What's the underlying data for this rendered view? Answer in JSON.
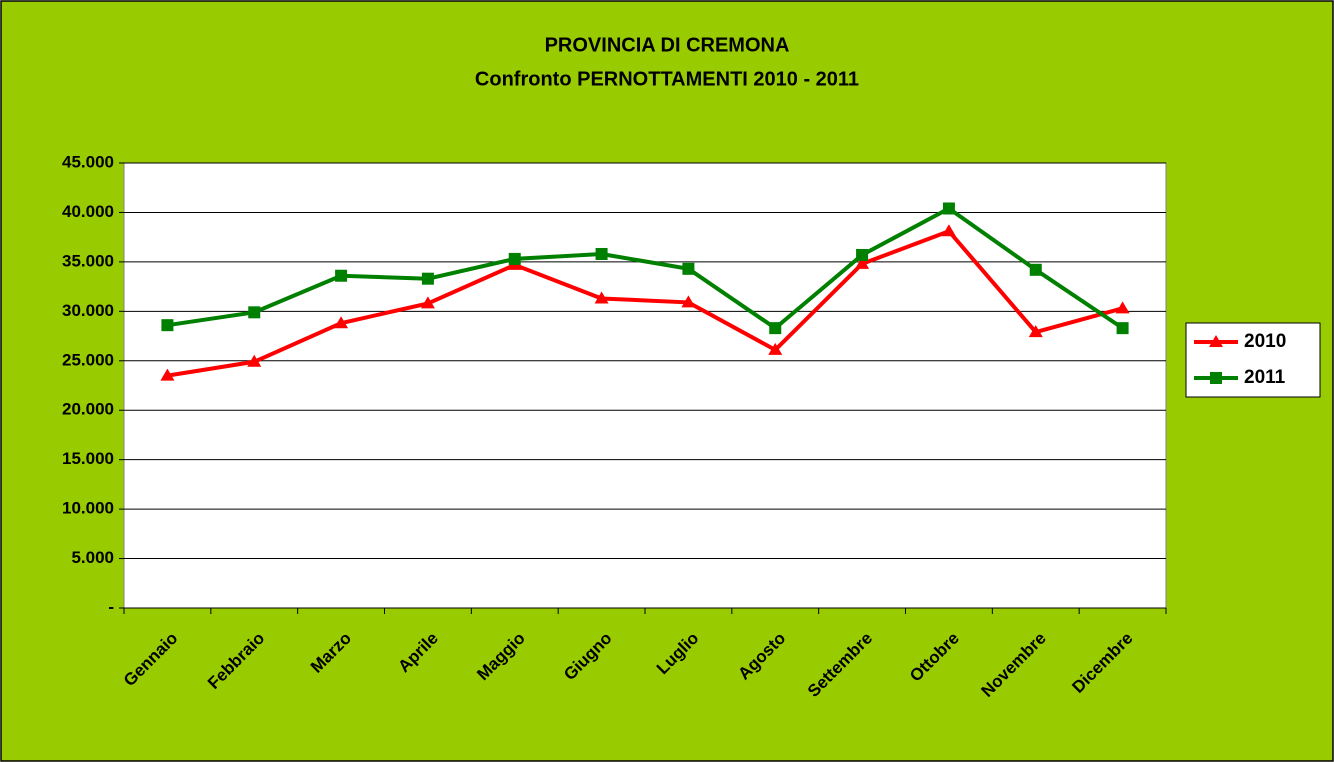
{
  "chart_data": {
    "type": "line",
    "title": "PROVINCIA DI CREMONA",
    "subtitle": "Confronto PERNOTTAMENTI  2010 - 2011",
    "categories": [
      "Gennaio",
      "Febbraio",
      "Marzo",
      "Aprile",
      "Maggio",
      "Giugno",
      "Luglio",
      "Agosto",
      "Settembre",
      "Ottobre",
      "Novembre",
      "Dicembre"
    ],
    "series": [
      {
        "name": "2010",
        "color": "#ff0000",
        "marker": "triangle",
        "values": [
          23500,
          24900,
          28800,
          30800,
          34700,
          31300,
          30900,
          26100,
          34800,
          38100,
          27900,
          30300
        ]
      },
      {
        "name": "2011",
        "color": "#008000",
        "marker": "square",
        "values": [
          28600,
          29900,
          33600,
          33300,
          35300,
          35800,
          34300,
          28300,
          35700,
          40400,
          34200,
          28300
        ]
      }
    ],
    "ylim": [
      0,
      45000
    ],
    "yticks": [
      {
        "value": 0,
        "label": "-"
      },
      {
        "value": 5000,
        "label": "5.000"
      },
      {
        "value": 10000,
        "label": "10.000"
      },
      {
        "value": 15000,
        "label": "15.000"
      },
      {
        "value": 20000,
        "label": "20.000"
      },
      {
        "value": 25000,
        "label": "25.000"
      },
      {
        "value": 30000,
        "label": "30.000"
      },
      {
        "value": 35000,
        "label": "35.000"
      },
      {
        "value": 40000,
        "label": "40.000"
      },
      {
        "value": 45000,
        "label": "45.000"
      }
    ],
    "grid": true,
    "legend": "right"
  }
}
